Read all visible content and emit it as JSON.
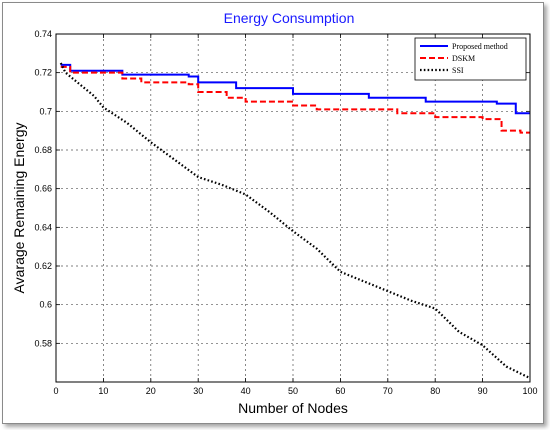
{
  "chart_data": {
    "type": "line",
    "title": "Energy Consumption",
    "xlabel": "Number of Nodes",
    "ylabel": "Avarage Remaining Energy",
    "xlim": [
      0,
      100
    ],
    "ylim": [
      0.56,
      0.74
    ],
    "xticks": [
      0,
      10,
      20,
      30,
      40,
      50,
      60,
      70,
      80,
      90,
      100
    ],
    "xtick_labels": [
      "0",
      "10",
      "20",
      "30",
      "40",
      "50",
      "60",
      "70",
      "80",
      "90",
      "100"
    ],
    "yticks": [
      0.58,
      0.6,
      0.62,
      0.64,
      0.66,
      0.68,
      0.7,
      0.72,
      0.74
    ],
    "ytick_labels": [
      "0.58",
      "0.6",
      "0.62",
      "0.64",
      "0.66",
      "0.68",
      "0.7",
      "0.72",
      "0.74"
    ],
    "grid": true,
    "legend_position": "top-right",
    "series": [
      {
        "name": "Proposed method",
        "color": "#0000ff",
        "dash": "solid",
        "x": [
          1,
          3,
          12,
          14,
          28,
          30,
          38,
          50,
          66,
          78,
          93,
          97,
          100
        ],
        "y": [
          0.724,
          0.721,
          0.721,
          0.719,
          0.718,
          0.715,
          0.712,
          0.709,
          0.707,
          0.705,
          0.704,
          0.699,
          0.699
        ]
      },
      {
        "name": "DSKM",
        "color": "#ff0000",
        "dash": "dashed",
        "x": [
          1,
          3,
          12,
          14,
          18,
          28,
          30,
          36,
          40,
          50,
          55,
          72,
          80,
          90,
          94,
          98,
          100
        ],
        "y": [
          0.723,
          0.72,
          0.72,
          0.717,
          0.715,
          0.714,
          0.71,
          0.707,
          0.705,
          0.703,
          0.701,
          0.699,
          0.697,
          0.696,
          0.69,
          0.689,
          0.689
        ]
      },
      {
        "name": "SSI",
        "color": "#000000",
        "dash": "dotted",
        "x": [
          1,
          2,
          5,
          8,
          10,
          15,
          20,
          25,
          30,
          35,
          40,
          45,
          50,
          55,
          60,
          65,
          70,
          75,
          80,
          85,
          90,
          95,
          100
        ],
        "y": [
          0.725,
          0.72,
          0.714,
          0.708,
          0.702,
          0.694,
          0.684,
          0.675,
          0.666,
          0.662,
          0.657,
          0.648,
          0.638,
          0.629,
          0.617,
          0.612,
          0.607,
          0.602,
          0.598,
          0.586,
          0.579,
          0.568,
          0.562
        ]
      }
    ]
  }
}
